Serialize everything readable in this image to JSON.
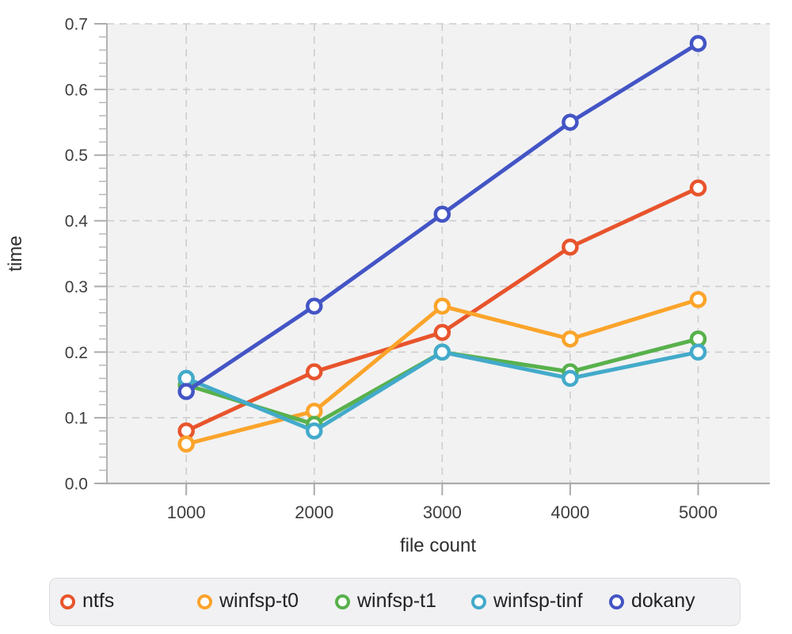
{
  "chart_data": {
    "type": "line",
    "xlabel": "file count",
    "ylabel": "time",
    "x": [
      1000,
      2000,
      3000,
      4000,
      5000
    ],
    "xlim": [
      380,
      5560
    ],
    "ylim": [
      0,
      0.7
    ],
    "ytick_step": 0.1,
    "ytick_minor_step": 0.02,
    "xtick_labels": [
      "1000",
      "2000",
      "3000",
      "4000",
      "5000"
    ],
    "ytick_labels": [
      "0.0",
      "0.1",
      "0.2",
      "0.3",
      "0.4",
      "0.5",
      "0.6",
      "0.7"
    ],
    "grid": "dashed",
    "legend_position": "bottom",
    "marker": "open-circle",
    "series": [
      {
        "name": "ntfs",
        "color": "#e8542c",
        "values": [
          0.08,
          0.17,
          0.23,
          0.36,
          0.45
        ]
      },
      {
        "name": "winfsp-t0",
        "color": "#fba42b",
        "values": [
          0.06,
          0.11,
          0.27,
          0.22,
          0.28
        ]
      },
      {
        "name": "winfsp-t1",
        "color": "#58b14c",
        "values": [
          0.15,
          0.09,
          0.2,
          0.17,
          0.22
        ]
      },
      {
        "name": "winfsp-tinf",
        "color": "#43aaca",
        "values": [
          0.16,
          0.08,
          0.2,
          0.16,
          0.2
        ]
      },
      {
        "name": "dokany",
        "color": "#4355c5",
        "values": [
          0.14,
          0.27,
          0.41,
          0.55,
          0.67
        ]
      }
    ]
  },
  "colors": {
    "plot_bg": "#f2f2f3",
    "grid": "#cdcdd0",
    "axis": "#ababad",
    "minor_tick": "#b8b8ba",
    "tick_label": "#3e3e40",
    "axis_title": "#2e2e30",
    "legend_bg": "#f1f1f3",
    "legend_border": "#dcdcde",
    "legend_text": "#222226"
  }
}
